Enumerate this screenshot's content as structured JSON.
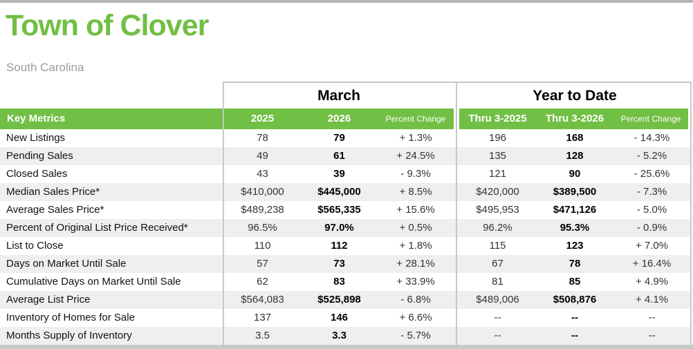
{
  "page": {
    "title": "Town of Clover",
    "subtitle": "South Carolina"
  },
  "colors": {
    "accent_green": "#71BF44",
    "row_shade_gray": "#EFEFEF",
    "divider_gray": "#C8C8C8",
    "bottom_bar_gray": "#C5C9CA",
    "subtitle_gray": "#9B9B9B"
  },
  "table": {
    "group_headers": {
      "march": "March",
      "ytd": "Year to Date"
    },
    "key_metrics_label": "Key Metrics",
    "columns": {
      "march_2025": "2025",
      "march_2026": "2026",
      "march_pct": "Percent Change",
      "ytd_2025": "Thru 3-2025",
      "ytd_2026": "Thru 3-2026",
      "ytd_pct": "Percent Change"
    },
    "rows": [
      {
        "label": "New Listings",
        "m2025": "78",
        "m2026": "79",
        "mpct": "+ 1.3%",
        "y2025": "196",
        "y2026": "168",
        "ypct": "- 14.3%"
      },
      {
        "label": "Pending Sales",
        "m2025": "49",
        "m2026": "61",
        "mpct": "+ 24.5%",
        "y2025": "135",
        "y2026": "128",
        "ypct": "- 5.2%"
      },
      {
        "label": "Closed Sales",
        "m2025": "43",
        "m2026": "39",
        "mpct": "- 9.3%",
        "y2025": "121",
        "y2026": "90",
        "ypct": "- 25.6%"
      },
      {
        "label": "Median Sales Price*",
        "m2025": "$410,000",
        "m2026": "$445,000",
        "mpct": "+ 8.5%",
        "y2025": "$420,000",
        "y2026": "$389,500",
        "ypct": "- 7.3%"
      },
      {
        "label": "Average Sales Price*",
        "m2025": "$489,238",
        "m2026": "$565,335",
        "mpct": "+ 15.6%",
        "y2025": "$495,953",
        "y2026": "$471,126",
        "ypct": "- 5.0%"
      },
      {
        "label": "Percent of Original List Price Received*",
        "m2025": "96.5%",
        "m2026": "97.0%",
        "mpct": "+ 0.5%",
        "y2025": "96.2%",
        "y2026": "95.3%",
        "ypct": "- 0.9%"
      },
      {
        "label": "List to Close",
        "m2025": "110",
        "m2026": "112",
        "mpct": "+ 1.8%",
        "y2025": "115",
        "y2026": "123",
        "ypct": "+ 7.0%"
      },
      {
        "label": "Days on Market Until Sale",
        "m2025": "57",
        "m2026": "73",
        "mpct": "+ 28.1%",
        "y2025": "67",
        "y2026": "78",
        "ypct": "+ 16.4%"
      },
      {
        "label": "Cumulative Days on Market Until Sale",
        "m2025": "62",
        "m2026": "83",
        "mpct": "+ 33.9%",
        "y2025": "81",
        "y2026": "85",
        "ypct": "+ 4.9%"
      },
      {
        "label": "Average List Price",
        "m2025": "$564,083",
        "m2026": "$525,898",
        "mpct": "- 6.8%",
        "y2025": "$489,006",
        "y2026": "$508,876",
        "ypct": "+ 4.1%"
      },
      {
        "label": "Inventory of Homes for Sale",
        "m2025": "137",
        "m2026": "146",
        "mpct": "+ 6.6%",
        "y2025": "--",
        "y2026": "--",
        "ypct": "--"
      },
      {
        "label": "Months Supply of Inventory",
        "m2025": "3.5",
        "m2026": "3.3",
        "mpct": "- 5.7%",
        "y2025": "--",
        "y2026": "--",
        "ypct": "--"
      }
    ]
  }
}
